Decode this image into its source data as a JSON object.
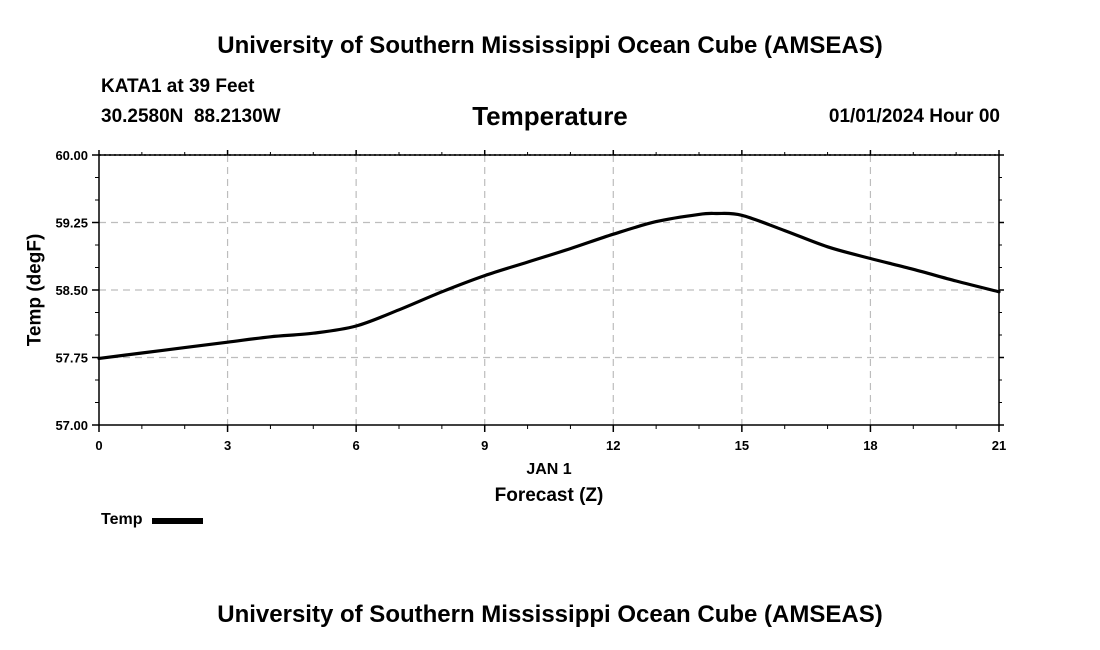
{
  "header": {
    "title": "University of Southern Mississippi Ocean Cube (AMSEAS)",
    "footer_title": "University of Southern Mississippi Ocean Cube (AMSEAS)",
    "station": "KATA1 at 39 Feet",
    "coordinates": "30.2580N  88.2130W",
    "variable": "Temperature",
    "valid_time": "01/01/2024 Hour 00"
  },
  "legend": {
    "label": "Temp"
  },
  "chart_data": {
    "type": "line",
    "title": "Temperature",
    "xlabel": "Forecast (Z)",
    "date_label": "JAN 1",
    "ylabel": "Temp (degF)",
    "xlim": [
      0,
      21
    ],
    "ylim": [
      57.0,
      60.0
    ],
    "xticks": [
      0,
      3,
      6,
      9,
      12,
      15,
      18,
      21
    ],
    "xtick_labels": [
      "0",
      "3",
      "6",
      "9",
      "12",
      "15",
      "18",
      "21"
    ],
    "yticks": [
      57.0,
      57.75,
      58.5,
      59.25,
      60.0
    ],
    "ytick_labels": [
      "57.00",
      "57.75",
      "58.50",
      "59.25",
      "60.00"
    ],
    "grid": true,
    "legend_position": "bottom-left",
    "series": [
      {
        "name": "Temp",
        "color": "#000000",
        "x": [
          0,
          1,
          2,
          3,
          4,
          5,
          6,
          7,
          8,
          9,
          10,
          11,
          12,
          13,
          14,
          14.4,
          15,
          16,
          17,
          18,
          19,
          20,
          21
        ],
        "y": [
          57.74,
          57.8,
          57.86,
          57.92,
          57.98,
          58.02,
          58.1,
          58.28,
          58.48,
          58.66,
          58.81,
          58.96,
          59.12,
          59.26,
          59.34,
          59.35,
          59.33,
          59.16,
          58.98,
          58.85,
          58.73,
          58.6,
          58.48
        ]
      }
    ]
  }
}
